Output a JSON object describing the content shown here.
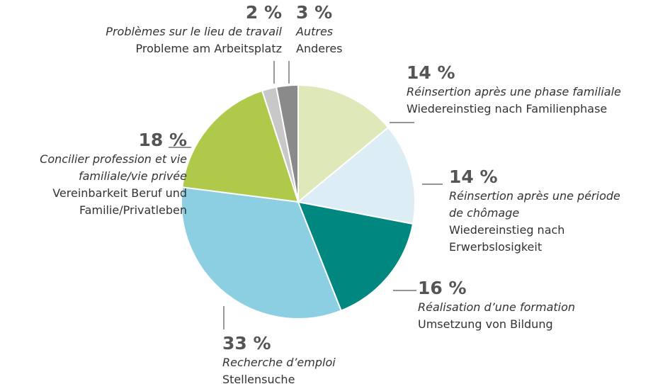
{
  "chart_data": {
    "type": "pie",
    "values": [
      14,
      14,
      16,
      33,
      18,
      2,
      3
    ],
    "value_labels": [
      "14 %",
      "14 %",
      "16 %",
      "33 %",
      "18 %",
      "2 %",
      "3 %"
    ],
    "labels_fr": [
      "Réinsertion après une phase familiale",
      "Réinsertion après une période de chômage",
      "Réalisation d’une formation",
      "Recherche d’emploi",
      "Concilier profession et vie familiale/vie privée",
      "Problèmes sur le lieu de travail",
      "Autres"
    ],
    "labels_de": [
      "Wiedereinstieg nach Familienphase",
      "Wiedereinstieg nach Erwerbslosigkeit",
      "Umsetzung von Bildung",
      "Stellensuche",
      "Vereinbarkeit Beruf und Familie/Privatleben",
      "Probleme am Arbeitsplatz",
      "Anderes"
    ],
    "colors": [
      "#dfe8b8",
      "#dcedf5",
      "#00877f",
      "#8ccfe3",
      "#afc94a",
      "#c8c8c8",
      "#8a8a8a"
    ]
  }
}
